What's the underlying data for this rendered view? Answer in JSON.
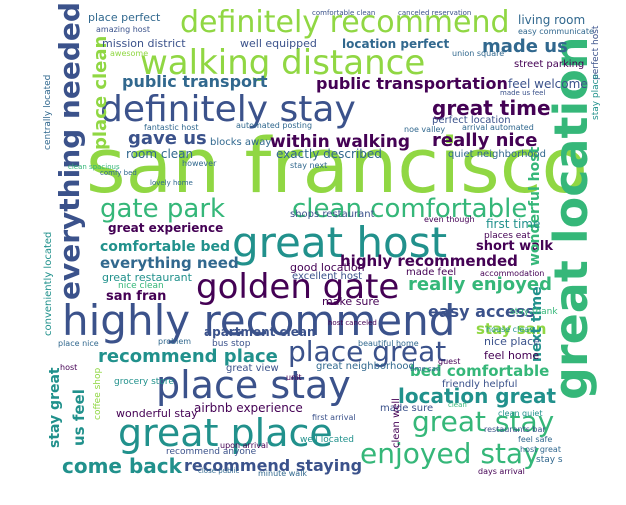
{
  "palette": {
    "purple": "#440154",
    "indigo": "#3b528b",
    "blue": "#31688e",
    "teal": "#21918c",
    "green": "#35b779",
    "lime": "#90d743",
    "yellow": "#fde725"
  },
  "words": [
    {
      "text": "san francisco",
      "color": "#90d743"
    },
    {
      "text": "great location",
      "color": "#35b779"
    },
    {
      "text": "highly recommend",
      "color": "#3b528b"
    },
    {
      "text": "great host",
      "color": "#21918c"
    },
    {
      "text": "walking distance",
      "color": "#90d743"
    },
    {
      "text": "definitely stay",
      "color": "#3b528b"
    },
    {
      "text": "definitely recommend",
      "color": "#90d743"
    },
    {
      "text": "everything needed",
      "color": "#3b528b"
    },
    {
      "text": "golden gate",
      "color": "#440154"
    },
    {
      "text": "place stay",
      "color": "#3b528b"
    },
    {
      "text": "great place",
      "color": "#21918c"
    },
    {
      "text": "gate park",
      "color": "#35b779"
    },
    {
      "text": "clean comfortable",
      "color": "#35b779"
    },
    {
      "text": "place great",
      "color": "#3b528b"
    },
    {
      "text": "great stay",
      "color": "#35b779"
    },
    {
      "text": "enjoyed stay",
      "color": "#35b779"
    },
    {
      "text": "public transportation",
      "color": "#440154"
    },
    {
      "text": "great time",
      "color": "#440154"
    },
    {
      "text": "recommend place",
      "color": "#21918c"
    },
    {
      "text": "location great",
      "color": "#21918c"
    },
    {
      "text": "come back",
      "color": "#21918c"
    },
    {
      "text": "really nice",
      "color": "#440154"
    },
    {
      "text": "really enjoyed",
      "color": "#35b779"
    },
    {
      "text": "highly recommended",
      "color": "#440154"
    },
    {
      "text": "made us",
      "color": "#31688e"
    },
    {
      "text": "public transport",
      "color": "#31688e"
    },
    {
      "text": "within walking",
      "color": "#440154"
    },
    {
      "text": "gave us",
      "color": "#3b528b"
    },
    {
      "text": "place clean",
      "color": "#90d743"
    },
    {
      "text": "comfortable bed",
      "color": "#21918c"
    },
    {
      "text": "everything need",
      "color": "#31688e"
    },
    {
      "text": "easy access",
      "color": "#3b528b"
    },
    {
      "text": "stay san",
      "color": "#90d743"
    },
    {
      "text": "recommend staying",
      "color": "#3b528b"
    },
    {
      "text": "bed comfortable",
      "color": "#35b779"
    },
    {
      "text": "us feel",
      "color": "#21918c"
    },
    {
      "text": "stay great",
      "color": "#21918c"
    },
    {
      "text": "great experience",
      "color": "#440154"
    },
    {
      "text": "san fran",
      "color": "#440154"
    },
    {
      "text": "apartment clean",
      "color": "#3b528b"
    },
    {
      "text": "short walk",
      "color": "#440154"
    },
    {
      "text": "wonderful host",
      "color": "#35b779"
    },
    {
      "text": "next time",
      "color": "#21918c"
    },
    {
      "text": "location perfect",
      "color": "#31688e"
    },
    {
      "text": "place perfect",
      "color": "#31688e"
    },
    {
      "text": "living room",
      "color": "#31688e"
    },
    {
      "text": "mission district",
      "color": "#3b528b"
    },
    {
      "text": "well equipped",
      "color": "#3b528b"
    },
    {
      "text": "feel welcome",
      "color": "#3b528b"
    },
    {
      "text": "room clean",
      "color": "#31688e"
    },
    {
      "text": "exactly described",
      "color": "#31688e"
    },
    {
      "text": "quiet neighborhood",
      "color": "#31688e"
    },
    {
      "text": "great restaurant",
      "color": "#21918c"
    },
    {
      "text": "nice clean",
      "color": "#35b779"
    },
    {
      "text": "good location",
      "color": "#440154"
    },
    {
      "text": "excellent host",
      "color": "#3b528b"
    },
    {
      "text": "made feel",
      "color": "#440154"
    },
    {
      "text": "make sure",
      "color": "#440154"
    },
    {
      "text": "feel home",
      "color": "#440154"
    },
    {
      "text": "nice place",
      "color": "#3b528b"
    },
    {
      "text": "great view",
      "color": "#3b528b"
    },
    {
      "text": "great neighborhood",
      "color": "#31688e"
    },
    {
      "text": "airbnb experience",
      "color": "#440154"
    },
    {
      "text": "made sure",
      "color": "#3b528b"
    },
    {
      "text": "friendly helpful",
      "color": "#3b528b"
    },
    {
      "text": "wonderful stay",
      "color": "#440154"
    },
    {
      "text": "recommend anyone",
      "color": "#3b528b"
    },
    {
      "text": "first time",
      "color": "#21918c"
    },
    {
      "text": "conveniently located",
      "color": "#21918c"
    },
    {
      "text": "centrally located",
      "color": "#31688e"
    },
    {
      "text": "clean well",
      "color": "#440154"
    },
    {
      "text": "well located",
      "color": "#21918c"
    },
    {
      "text": "stay thank",
      "color": "#35b779"
    },
    {
      "text": "fantastic host",
      "color": "#31688e"
    },
    {
      "text": "blocks away",
      "color": "#31688e"
    },
    {
      "text": "street parking",
      "color": "#440154"
    },
    {
      "text": "easy communicate",
      "color": "#31688e"
    },
    {
      "text": "comfortable clean",
      "color": "#3b528b"
    },
    {
      "text": "canceled reservation",
      "color": "#3b528b"
    },
    {
      "text": "amazing host",
      "color": "#3b528b"
    },
    {
      "text": "perfect location",
      "color": "#3b528b"
    },
    {
      "text": "shops restaurant",
      "color": "#3b528b"
    },
    {
      "text": "places eat",
      "color": "#440154"
    },
    {
      "text": "coffee shop",
      "color": "#90d743"
    },
    {
      "text": "grocery store",
      "color": "#21918c"
    },
    {
      "text": "bus stop",
      "color": "#3b528b"
    },
    {
      "text": "beautiful home",
      "color": "#31688e"
    },
    {
      "text": "house clean",
      "color": "#21918c"
    },
    {
      "text": "clean quiet",
      "color": "#21918c"
    },
    {
      "text": "feel safe",
      "color": "#31688e"
    },
    {
      "text": "host great",
      "color": "#31688e"
    },
    {
      "text": "days arrival",
      "color": "#440154"
    },
    {
      "text": "stay s",
      "color": "#31688e"
    },
    {
      "text": "arrival automated",
      "color": "#31688e"
    },
    {
      "text": "automated posting",
      "color": "#31688e"
    },
    {
      "text": "noe valley",
      "color": "#31688e"
    },
    {
      "text": "union square",
      "color": "#31688e"
    },
    {
      "text": "restaurants bar",
      "color": "#3b528b"
    },
    {
      "text": "first arrival",
      "color": "#3b528b"
    },
    {
      "text": "upon arrival",
      "color": "#440154"
    },
    {
      "text": "minute walk",
      "color": "#31688e"
    },
    {
      "text": "even though",
      "color": "#440154"
    },
    {
      "text": "awesome",
      "color": "#90d743"
    },
    {
      "text": "however",
      "color": "#31688e"
    },
    {
      "text": "problem",
      "color": "#31688e"
    },
    {
      "text": "unit",
      "color": "#440154"
    },
    {
      "text": "guest",
      "color": "#440154"
    },
    {
      "text": "perfect host",
      "color": "#3b528b"
    },
    {
      "text": "stay place",
      "color": "#21918c"
    },
    {
      "text": "stay next",
      "color": "#31688e"
    },
    {
      "text": "accommodation",
      "color": "#440154"
    },
    {
      "text": "made us feel",
      "color": "#3b528b"
    },
    {
      "text": "comfy bed",
      "color": "#31688e"
    },
    {
      "text": "clean spacious",
      "color": "#35b779"
    },
    {
      "text": "lovely home",
      "color": "#31688e"
    },
    {
      "text": "host canceled",
      "color": "#440154"
    },
    {
      "text": "close public",
      "color": "#31688e"
    },
    {
      "text": "place nice",
      "color": "#31688e"
    },
    {
      "text": "host",
      "color": "#440154"
    },
    {
      "text": "time san",
      "color": "#31688e"
    },
    {
      "text": "clean",
      "color": "#35b779"
    }
  ]
}
